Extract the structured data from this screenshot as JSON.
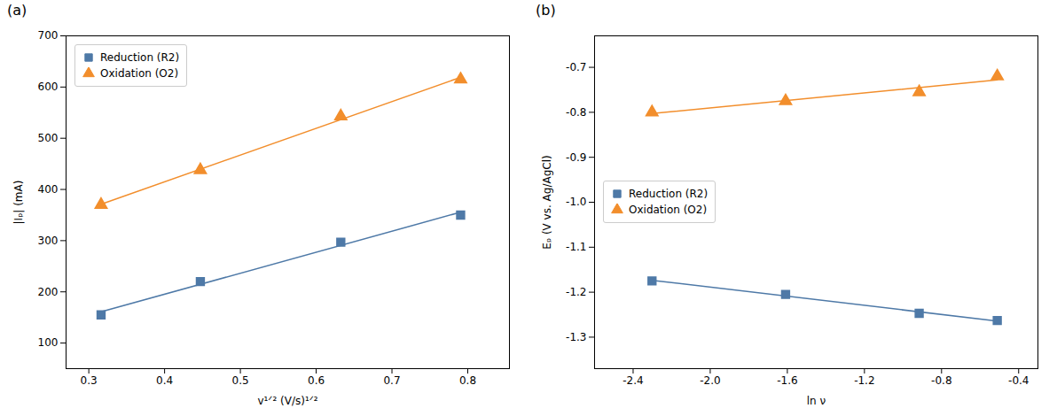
{
  "chart_data": [
    {
      "type": "scatter",
      "title": "(a)",
      "xlabel": "v¹ᐟ² (V/s)¹ᐟ²",
      "ylabel": "|Iₚ| (mA)",
      "xlim": [
        0.27,
        0.855
      ],
      "ylim": [
        50,
        700
      ],
      "xticks": [
        0.3,
        0.4,
        0.5,
        0.6,
        0.7,
        0.8
      ],
      "yticks": [
        100,
        200,
        300,
        400,
        500,
        600,
        700
      ],
      "legend": "upper left",
      "series": [
        {
          "name": "Reduction (R2)",
          "marker": "square",
          "line_style": "solid",
          "x": [
            0.3162,
            0.4472,
            0.6325,
            0.7906
          ],
          "values": [
            155,
            220,
            297,
            350
          ]
        },
        {
          "name": "Oxidation (O2)",
          "marker": "triangle",
          "line_style": "solid",
          "x": [
            0.3162,
            0.4472,
            0.6325,
            0.7906
          ],
          "values": [
            370,
            438,
            543,
            615
          ]
        }
      ]
    },
    {
      "type": "scatter",
      "title": "(b)",
      "xlabel": "ln ν",
      "ylabel": "Eₚ (V vs. Ag/AgCl)",
      "xlim": [
        -2.6,
        -0.3
      ],
      "ylim": [
        -1.37,
        -0.63
      ],
      "xticks": [
        -2.4,
        {
          "value": -2.0,
          "label": "-2.0"
        },
        -1.6,
        -1.2,
        -0.8,
        -0.4
      ],
      "yticks": [
        -1.3,
        -1.2,
        -1.1,
        {
          "value": -1.0,
          "label": "-1.0"
        },
        -0.9,
        -0.8,
        -0.7
      ],
      "legend": "center left",
      "series": [
        {
          "name": "Reduction (R2)",
          "marker": "square",
          "line_style": "solid",
          "x": [
            -2.302,
            -1.609,
            -0.916,
            -0.511
          ],
          "values": [
            -1.175,
            -1.205,
            -1.247,
            -1.263
          ]
        },
        {
          "name": "Oxidation (O2)",
          "marker": "triangle",
          "line_style": "solid",
          "x": [
            -2.302,
            -1.609,
            -0.916,
            -0.511
          ],
          "values": [
            -0.8,
            -0.775,
            -0.755,
            -0.72
          ]
        }
      ]
    }
  ]
}
